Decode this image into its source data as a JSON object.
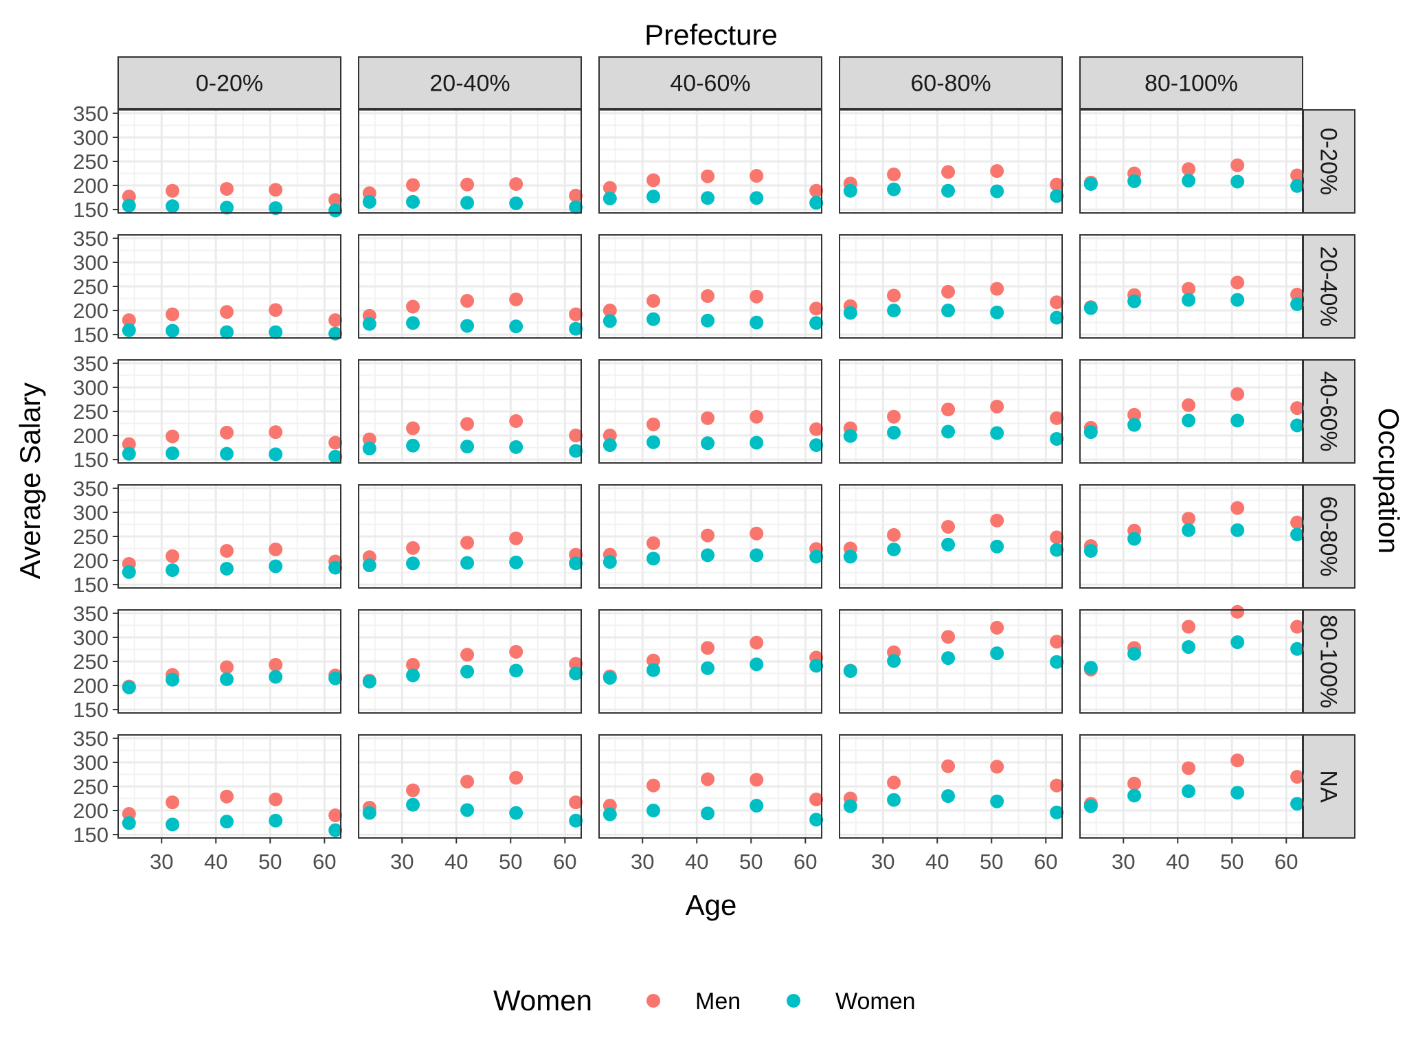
{
  "chart_data": {
    "type": "scatter",
    "title": "",
    "xlabel": "Age",
    "ylabel": "Average Salary",
    "col_facet_title": "Prefecture",
    "row_facet_title": "Occupation",
    "col_facets": [
      "0-20%",
      "20-40%",
      "40-60%",
      "60-80%",
      "80-100%"
    ],
    "row_facets": [
      "0-20%",
      "20-40%",
      "40-60%",
      "60-80%",
      "80-100%",
      "NA"
    ],
    "x": [
      24,
      32,
      42,
      51,
      62
    ],
    "xlim": [
      22,
      63
    ],
    "ylim": [
      143,
      357
    ],
    "x_ticks": [
      30,
      40,
      50,
      60
    ],
    "y_ticks": [
      150,
      200,
      250,
      300,
      350
    ],
    "x_tick_labels": [
      "30",
      "40",
      "50",
      "60"
    ],
    "y_tick_labels": [
      "150",
      "200",
      "250",
      "300",
      "350"
    ],
    "legend": {
      "title": "Women",
      "position": "bottom",
      "entries": [
        {
          "name": "Men",
          "color": "#F8766D"
        },
        {
          "name": "Women",
          "color": "#00BFC4"
        }
      ]
    },
    "panels": [
      [
        {
          "Men": [
            177,
            189,
            193,
            191,
            170
          ],
          "Women": [
            158,
            157,
            154,
            153,
            148
          ]
        },
        {
          "Men": [
            184,
            201,
            202,
            203,
            179
          ],
          "Women": [
            166,
            166,
            164,
            163,
            155
          ]
        },
        {
          "Men": [
            195,
            211,
            219,
            220,
            189
          ],
          "Women": [
            173,
            177,
            174,
            174,
            164
          ]
        },
        {
          "Men": [
            204,
            223,
            228,
            230,
            202
          ],
          "Women": [
            189,
            192,
            189,
            188,
            178
          ]
        },
        {
          "Men": [
            206,
            225,
            234,
            242,
            221
          ],
          "Women": [
            203,
            209,
            210,
            208,
            199
          ]
        }
      ],
      [
        {
          "Men": [
            180,
            192,
            197,
            201,
            180
          ],
          "Women": [
            159,
            158,
            155,
            155,
            152
          ]
        },
        {
          "Men": [
            189,
            208,
            220,
            223,
            192
          ],
          "Women": [
            172,
            174,
            168,
            167,
            162
          ]
        },
        {
          "Men": [
            200,
            220,
            230,
            229,
            204
          ],
          "Women": [
            178,
            182,
            179,
            175,
            174
          ]
        },
        {
          "Men": [
            209,
            231,
            239,
            245,
            217
          ],
          "Women": [
            195,
            200,
            200,
            196,
            185
          ]
        },
        {
          "Men": [
            207,
            232,
            245,
            258,
            233
          ],
          "Women": [
            205,
            219,
            222,
            222,
            213
          ]
        }
      ],
      [
        {
          "Men": [
            182,
            198,
            206,
            207,
            185
          ],
          "Women": [
            162,
            163,
            162,
            161,
            156
          ]
        },
        {
          "Men": [
            192,
            215,
            224,
            230,
            200
          ],
          "Women": [
            173,
            179,
            177,
            176,
            168
          ]
        },
        {
          "Men": [
            200,
            223,
            236,
            239,
            213
          ],
          "Women": [
            180,
            186,
            184,
            185,
            180
          ]
        },
        {
          "Men": [
            215,
            239,
            254,
            260,
            236
          ],
          "Women": [
            199,
            206,
            208,
            205,
            193
          ]
        },
        {
          "Men": [
            216,
            243,
            263,
            286,
            257
          ],
          "Women": [
            207,
            222,
            231,
            231,
            221
          ]
        }
      ],
      [
        {
          "Men": [
            193,
            209,
            220,
            223,
            198
          ],
          "Women": [
            176,
            180,
            183,
            188,
            185
          ]
        },
        {
          "Men": [
            207,
            226,
            237,
            246,
            212
          ],
          "Women": [
            190,
            194,
            195,
            196,
            194
          ]
        },
        {
          "Men": [
            212,
            236,
            252,
            256,
            224
          ],
          "Women": [
            197,
            204,
            211,
            211,
            208
          ]
        },
        {
          "Men": [
            225,
            253,
            270,
            283,
            248
          ],
          "Women": [
            208,
            223,
            233,
            229,
            222
          ]
        },
        {
          "Men": [
            230,
            262,
            287,
            309,
            279
          ],
          "Women": [
            220,
            245,
            263,
            263,
            254
          ]
        }
      ],
      [
        {
          "Men": [
            198,
            222,
            238,
            243,
            221
          ],
          "Women": [
            196,
            212,
            213,
            218,
            215
          ]
        },
        {
          "Men": [
            210,
            243,
            264,
            270,
            245
          ],
          "Women": [
            208,
            221,
            229,
            231,
            225
          ]
        },
        {
          "Men": [
            219,
            252,
            278,
            289,
            258
          ],
          "Women": [
            216,
            232,
            236,
            244,
            241
          ]
        },
        {
          "Men": [
            231,
            269,
            301,
            320,
            291
          ],
          "Women": [
            230,
            251,
            257,
            267,
            249
          ]
        },
        {
          "Men": [
            233,
            278,
            322,
            353,
            322
          ],
          "Women": [
            237,
            266,
            280,
            290,
            276
          ]
        }
      ],
      [
        {
          "Men": [
            193,
            217,
            229,
            223,
            190
          ],
          "Women": [
            174,
            171,
            177,
            179,
            159
          ]
        },
        {
          "Men": [
            206,
            242,
            260,
            268,
            217
          ],
          "Women": [
            195,
            212,
            201,
            195,
            179
          ]
        },
        {
          "Men": [
            210,
            252,
            265,
            264,
            223
          ],
          "Women": [
            192,
            200,
            194,
            210,
            181
          ]
        },
        {
          "Men": [
            225,
            258,
            292,
            291,
            252
          ],
          "Women": [
            209,
            222,
            230,
            219,
            196
          ]
        },
        {
          "Men": [
            214,
            256,
            288,
            304,
            270
          ],
          "Women": [
            209,
            231,
            240,
            237,
            214
          ]
        }
      ]
    ]
  }
}
